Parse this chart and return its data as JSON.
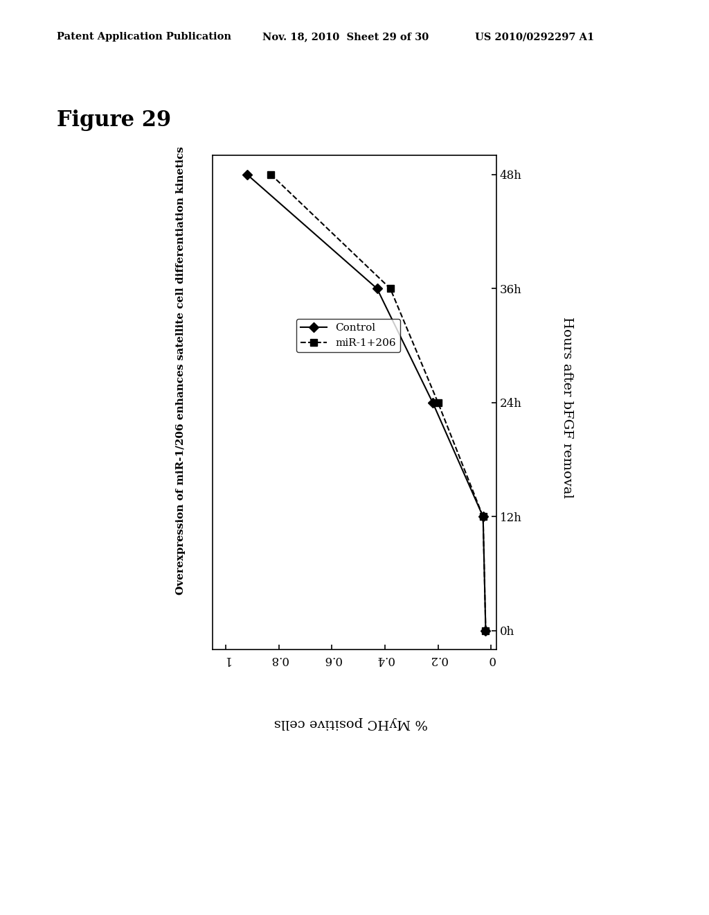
{
  "header_left": "Patent Application Publication",
  "header_center": "Nov. 18, 2010  Sheet 29 of 30",
  "header_right": "US 2010/0292297 A1",
  "figure_label": "Figure 29",
  "chart_title": "Overexpression of miR-1/206 enhances satellite cell differentiation kinetics",
  "x_label": "Hours after bFGF removal",
  "y_label": "% MyHC positive cells",
  "hours_ticks": [
    0,
    12,
    24,
    36,
    48
  ],
  "hours_tick_labels": [
    "0h",
    "12h",
    "24h",
    "36h",
    "48h"
  ],
  "pct_ticks": [
    0,
    0.2,
    0.4,
    0.6,
    0.8,
    1.0
  ],
  "pct_tick_labels": [
    "0",
    "0.2",
    "0.4",
    "0.6",
    "0.8",
    "1"
  ],
  "control_hours": [
    0,
    12,
    24,
    36,
    48
  ],
  "control_pct": [
    0.02,
    0.03,
    0.22,
    0.43,
    0.92
  ],
  "mir_hours": [
    0,
    12,
    24,
    36,
    48
  ],
  "mir_pct": [
    0.02,
    0.03,
    0.2,
    0.38,
    0.83
  ],
  "control_label": "Control",
  "mir_label": "miR-1+206",
  "background_color": "#ffffff"
}
